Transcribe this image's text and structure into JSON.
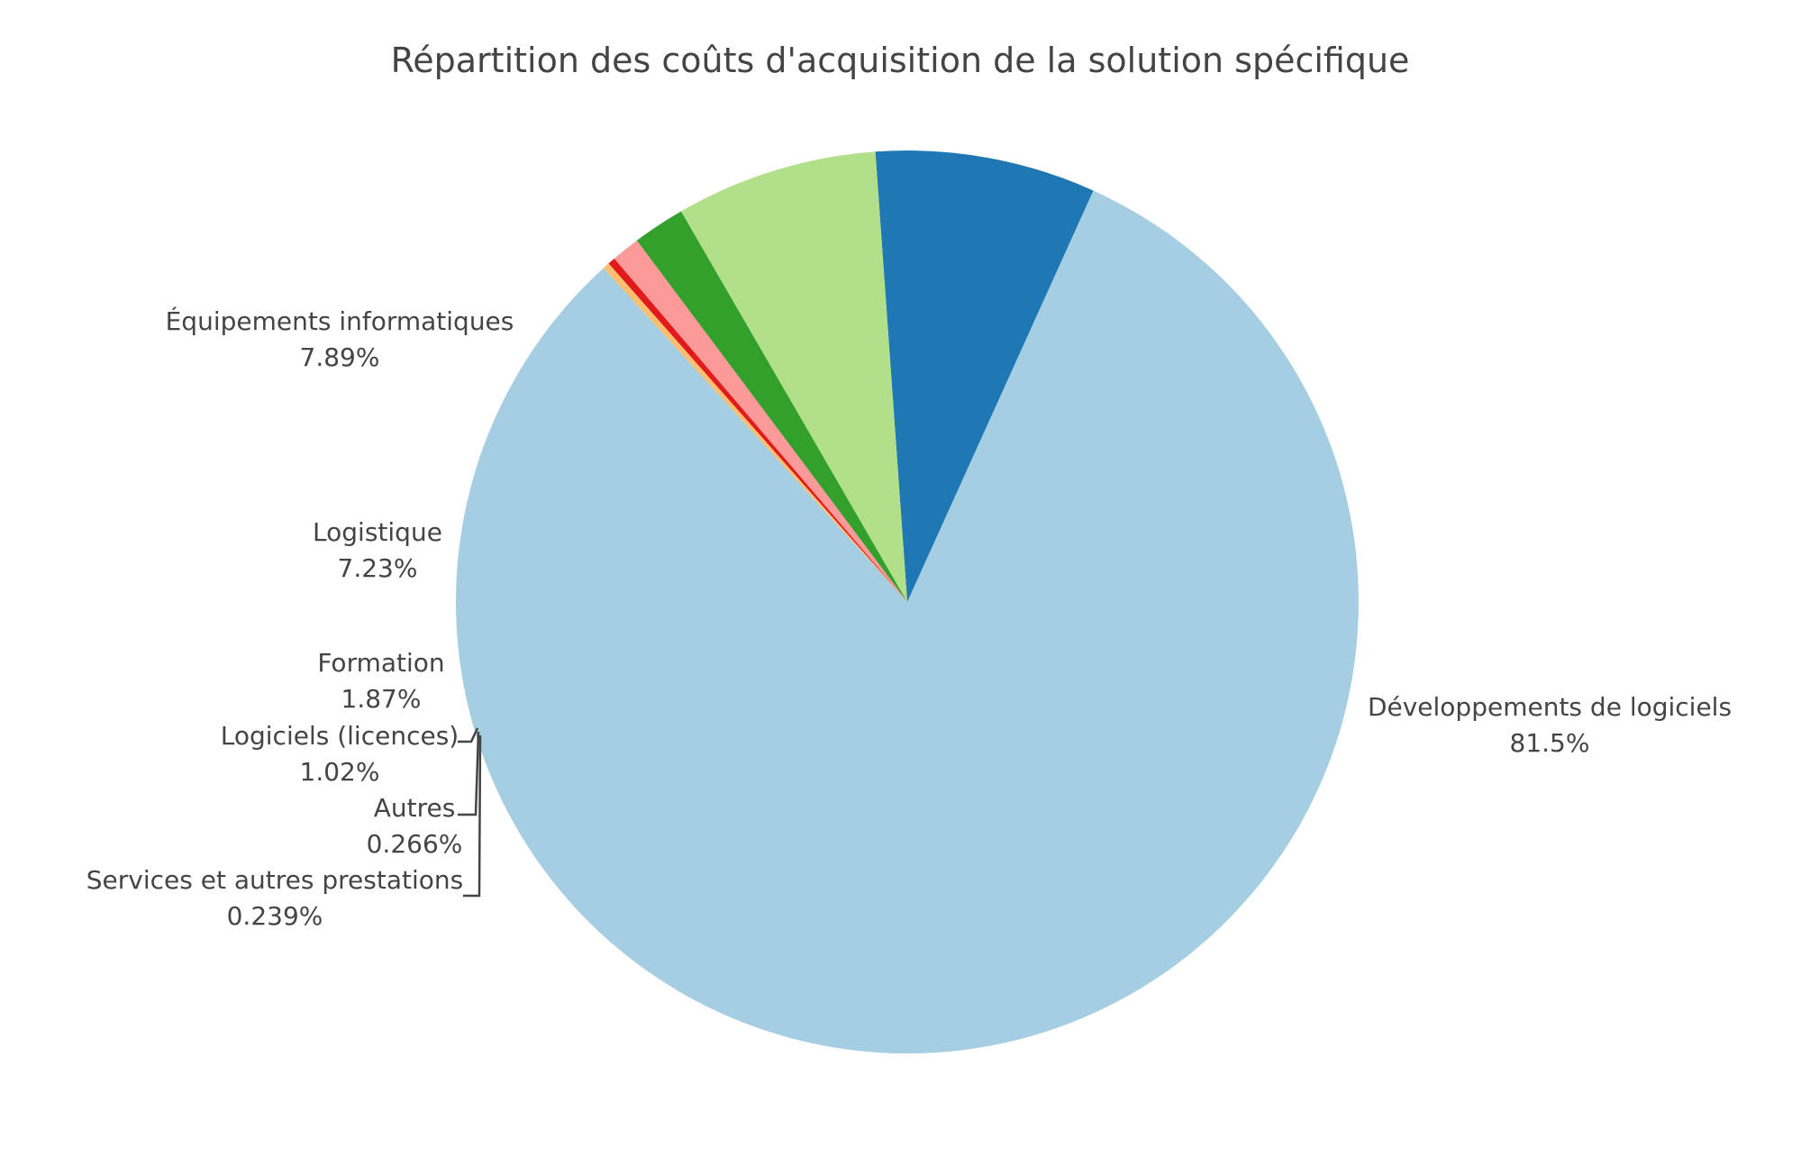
{
  "chart_data": {
    "type": "pie",
    "title": "Répartition des coûts d'acquisition de la solution spécifique",
    "slices": [
      {
        "label": "Développements de logiciels",
        "value": 81.5,
        "percent_text": "81.5%",
        "color": "#a6cee3"
      },
      {
        "label": "Équipements informatiques",
        "value": 7.89,
        "percent_text": "7.89%",
        "color": "#1f78b4"
      },
      {
        "label": "Logistique",
        "value": 7.23,
        "percent_text": "7.23%",
        "color": "#b2df8a"
      },
      {
        "label": "Formation",
        "value": 1.87,
        "percent_text": "1.87%",
        "color": "#33a02c"
      },
      {
        "label": "Logiciels (licences)",
        "value": 1.02,
        "percent_text": "1.02%",
        "color": "#fb9a99"
      },
      {
        "label": "Autres",
        "value": 0.266,
        "percent_text": "0.266%",
        "color": "#e31a1c"
      },
      {
        "label": "Services et autres prestations",
        "value": 0.239,
        "percent_text": "0.239%",
        "color": "#fdbf6f"
      }
    ],
    "direction": "counterclockwise"
  }
}
